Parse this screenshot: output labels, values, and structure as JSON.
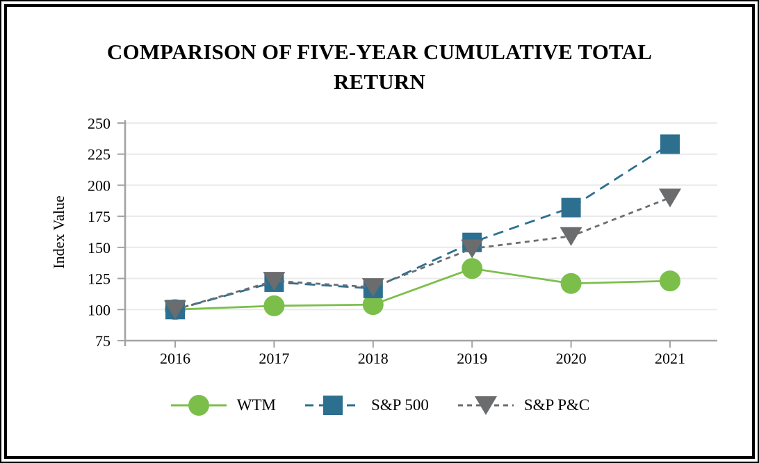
{
  "chart_data": {
    "type": "line",
    "title": "COMPARISON OF FIVE-YEAR CUMULATIVE TOTAL RETURN",
    "xlabel": "",
    "ylabel": "Index Value",
    "categories": [
      "2016",
      "2017",
      "2018",
      "2019",
      "2020",
      "2021"
    ],
    "y_ticks": [
      75,
      100,
      125,
      150,
      175,
      200,
      225,
      250
    ],
    "ylim": [
      75,
      250
    ],
    "grid": "horizontal-only",
    "legend_position": "bottom",
    "series": [
      {
        "name": "WTM",
        "values": [
          100,
          103,
          104,
          133,
          121,
          123
        ],
        "color": "#7bbf4a",
        "marker": "circle",
        "line_style": "solid"
      },
      {
        "name": "S&P 500",
        "values": [
          100,
          122,
          117,
          154,
          182,
          233
        ],
        "color": "#2d6f8f",
        "marker": "square",
        "line_style": "dashed"
      },
      {
        "name": "S&P P&C",
        "values": [
          100,
          123,
          118,
          149,
          159,
          190
        ],
        "color": "#6b6c6e",
        "marker": "triangle-down",
        "line_style": "dashed-short"
      }
    ]
  },
  "colors": {
    "axis": "#a3a3a3",
    "grid": "#eaeaea",
    "text": "#000000",
    "background": "#ffffff",
    "frame_border": "#000000"
  }
}
